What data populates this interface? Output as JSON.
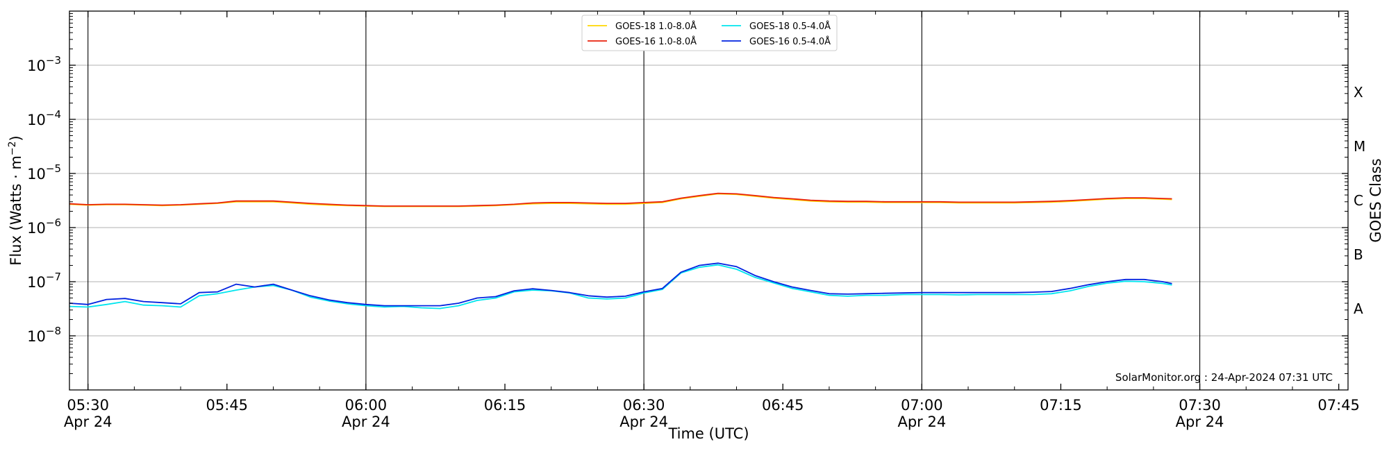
{
  "chart_data": {
    "type": "line",
    "title": "",
    "xlabel": "Time (UTC)",
    "ylabel": "Flux (Watts · m⁻²)",
    "right_axis_label": "GOES Class",
    "y_scale": "log",
    "ylim": [
      1e-09,
      0.01
    ],
    "xlim": [
      "2024-04-24 05:28",
      "2024-04-24 07:46"
    ],
    "grid": "horizontal",
    "legend_position": "top-center",
    "x_ticks": [
      {
        "time": "05:30",
        "label": "05:30",
        "date": "Apr 24"
      },
      {
        "time": "05:45",
        "label": "05:45",
        "date": ""
      },
      {
        "time": "06:00",
        "label": "06:00",
        "date": "Apr 24"
      },
      {
        "time": "06:15",
        "label": "06:15",
        "date": ""
      },
      {
        "time": "06:30",
        "label": "06:30",
        "date": "Apr 24"
      },
      {
        "time": "06:45",
        "label": "06:45",
        "date": ""
      },
      {
        "time": "07:00",
        "label": "07:00",
        "date": "Apr 24"
      },
      {
        "time": "07:15",
        "label": "07:15",
        "date": ""
      },
      {
        "time": "07:30",
        "label": "07:30",
        "date": "Apr 24"
      },
      {
        "time": "07:45",
        "label": "07:45",
        "date": ""
      }
    ],
    "vertical_lines": [
      "05:30",
      "06:00",
      "06:30",
      "07:00",
      "07:30"
    ],
    "y_ticks": [
      {
        "value": 1e-08,
        "base": "10",
        "exp": "−8"
      },
      {
        "value": 1e-07,
        "base": "10",
        "exp": "−7"
      },
      {
        "value": 1e-06,
        "base": "10",
        "exp": "−6"
      },
      {
        "value": 1e-05,
        "base": "10",
        "exp": "−5"
      },
      {
        "value": 0.0001,
        "base": "10",
        "exp": "−4"
      },
      {
        "value": 0.001,
        "base": "10",
        "exp": "−3"
      }
    ],
    "goes_classes": [
      {
        "label": "A",
        "value": 3.16e-08
      },
      {
        "label": "B",
        "value": 3.16e-07
      },
      {
        "label": "C",
        "value": 3.16e-06
      },
      {
        "label": "M",
        "value": 3.16e-05
      },
      {
        "label": "X",
        "value": 0.000316
      }
    ],
    "x": [
      "05:28",
      "05:30",
      "05:32",
      "05:34",
      "05:36",
      "05:38",
      "05:40",
      "05:42",
      "05:44",
      "05:46",
      "05:48",
      "05:50",
      "05:52",
      "05:54",
      "05:56",
      "05:58",
      "06:00",
      "06:02",
      "06:04",
      "06:06",
      "06:08",
      "06:10",
      "06:12",
      "06:14",
      "06:16",
      "06:18",
      "06:20",
      "06:22",
      "06:24",
      "06:26",
      "06:28",
      "06:30",
      "06:32",
      "06:34",
      "06:36",
      "06:38",
      "06:40",
      "06:42",
      "06:44",
      "06:46",
      "06:48",
      "06:50",
      "06:52",
      "06:54",
      "06:56",
      "06:58",
      "07:00",
      "07:02",
      "07:04",
      "07:06",
      "07:08",
      "07:10",
      "07:12",
      "07:14",
      "07:16",
      "07:18",
      "07:20",
      "07:22",
      "07:24",
      "07:26",
      "07:27"
    ],
    "series": [
      {
        "name": "GOES-18 1.0-8.0Å",
        "color": "#FFD700",
        "values": [
          2.7e-06,
          2.6e-06,
          2.65e-06,
          2.65e-06,
          2.6e-06,
          2.55e-06,
          2.6e-06,
          2.7e-06,
          2.8e-06,
          3e-06,
          3e-06,
          3e-06,
          2.85e-06,
          2.7e-06,
          2.6e-06,
          2.55e-06,
          2.5e-06,
          2.45e-06,
          2.45e-06,
          2.45e-06,
          2.45e-06,
          2.45e-06,
          2.5e-06,
          2.55e-06,
          2.65e-06,
          2.75e-06,
          2.8e-06,
          2.8e-06,
          2.75e-06,
          2.7e-06,
          2.7e-06,
          2.8e-06,
          2.9e-06,
          3.4e-06,
          3.8e-06,
          4.2e-06,
          4.1e-06,
          3.8e-06,
          3.5e-06,
          3.3e-06,
          3.1e-06,
          3e-06,
          2.95e-06,
          2.95e-06,
          2.9e-06,
          2.9e-06,
          2.9e-06,
          2.9e-06,
          2.85e-06,
          2.85e-06,
          2.85e-06,
          2.85e-06,
          2.9e-06,
          2.95e-06,
          3.05e-06,
          3.2e-06,
          3.35e-06,
          3.45e-06,
          3.45e-06,
          3.35e-06,
          3.3e-06
        ]
      },
      {
        "name": "GOES-16 1.0-8.0Å",
        "color": "#E8210C",
        "values": [
          2.75e-06,
          2.65e-06,
          2.7e-06,
          2.7e-06,
          2.65e-06,
          2.6e-06,
          2.65e-06,
          2.75e-06,
          2.85e-06,
          3.1e-06,
          3.1e-06,
          3.1e-06,
          2.95e-06,
          2.8e-06,
          2.7e-06,
          2.6e-06,
          2.55e-06,
          2.5e-06,
          2.5e-06,
          2.5e-06,
          2.5e-06,
          2.5e-06,
          2.55e-06,
          2.6e-06,
          2.7e-06,
          2.85e-06,
          2.9e-06,
          2.9e-06,
          2.85e-06,
          2.8e-06,
          2.8e-06,
          2.9e-06,
          3e-06,
          3.5e-06,
          3.9e-06,
          4.3e-06,
          4.2e-06,
          3.9e-06,
          3.6e-06,
          3.4e-06,
          3.2e-06,
          3.1e-06,
          3.05e-06,
          3.05e-06,
          3e-06,
          3e-06,
          3e-06,
          3e-06,
          2.95e-06,
          2.95e-06,
          2.95e-06,
          2.95e-06,
          3e-06,
          3.05e-06,
          3.15e-06,
          3.3e-06,
          3.45e-06,
          3.55e-06,
          3.55e-06,
          3.45e-06,
          3.4e-06
        ]
      },
      {
        "name": "GOES-18 0.5-4.0Å",
        "color": "#00E5EE",
        "values": [
          3.5e-08,
          3.4e-08,
          3.8e-08,
          4.3e-08,
          3.7e-08,
          3.6e-08,
          3.4e-08,
          5.5e-08,
          6e-08,
          7e-08,
          8e-08,
          8.5e-08,
          7e-08,
          5.2e-08,
          4.4e-08,
          3.9e-08,
          3.6e-08,
          3.4e-08,
          3.5e-08,
          3.3e-08,
          3.2e-08,
          3.6e-08,
          4.5e-08,
          5e-08,
          6.5e-08,
          7e-08,
          6.8e-08,
          6.2e-08,
          5e-08,
          4.8e-08,
          5e-08,
          6.2e-08,
          7.2e-08,
          1.45e-07,
          1.85e-07,
          2.05e-07,
          1.7e-07,
          1.2e-07,
          9.5e-08,
          7.5e-08,
          6.5e-08,
          5.6e-08,
          5.4e-08,
          5.6e-08,
          5.6e-08,
          5.8e-08,
          5.8e-08,
          5.8e-08,
          5.7e-08,
          5.8e-08,
          5.8e-08,
          5.8e-08,
          5.8e-08,
          6e-08,
          6.8e-08,
          8.2e-08,
          9.4e-08,
          1.02e-07,
          1e-07,
          9.3e-08,
          8.7e-08
        ]
      },
      {
        "name": "GOES-16 0.5-4.0Å",
        "color": "#0022E0",
        "values": [
          4e-08,
          3.8e-08,
          4.7e-08,
          4.9e-08,
          4.3e-08,
          4.1e-08,
          3.9e-08,
          6.3e-08,
          6.5e-08,
          9e-08,
          8e-08,
          9e-08,
          7e-08,
          5.5e-08,
          4.6e-08,
          4.1e-08,
          3.8e-08,
          3.6e-08,
          3.6e-08,
          3.6e-08,
          3.6e-08,
          4e-08,
          5e-08,
          5.3e-08,
          6.8e-08,
          7.4e-08,
          6.9e-08,
          6.3e-08,
          5.5e-08,
          5.2e-08,
          5.4e-08,
          6.5e-08,
          7.5e-08,
          1.5e-07,
          2e-07,
          2.2e-07,
          1.9e-07,
          1.3e-07,
          1e-07,
          8e-08,
          6.9e-08,
          6e-08,
          5.9e-08,
          6e-08,
          6.1e-08,
          6.2e-08,
          6.3e-08,
          6.3e-08,
          6.3e-08,
          6.3e-08,
          6.3e-08,
          6.3e-08,
          6.4e-08,
          6.6e-08,
          7.5e-08,
          8.8e-08,
          1e-07,
          1.1e-07,
          1.1e-07,
          1e-07,
          9.2e-08
        ]
      }
    ],
    "annotation": "SolarMonitor.org : 24-Apr-2024 07:31 UTC"
  }
}
